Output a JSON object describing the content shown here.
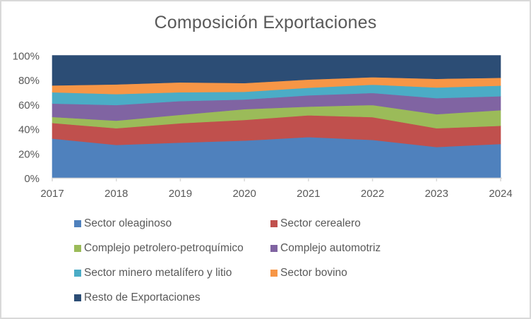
{
  "chart_data": {
    "type": "area",
    "stacked": true,
    "normalized": "100%",
    "title": "Composición Exportaciones",
    "xlabel": "",
    "ylabel": "",
    "x": [
      "2017",
      "2018",
      "2019",
      "2020",
      "2021",
      "2022",
      "2023",
      "2024"
    ],
    "ylim": [
      0,
      100
    ],
    "yticks": [
      "0%",
      "20%",
      "40%",
      "60%",
      "80%",
      "100%"
    ],
    "grid": false,
    "legend_position": "bottom",
    "series": [
      {
        "name": "Sector oleaginoso",
        "color": "#4f81bd",
        "values": [
          32.1,
          26.9,
          28.8,
          30.4,
          33.3,
          31.0,
          25.2,
          27.7
        ]
      },
      {
        "name": "Sector cerealero",
        "color": "#c0504d",
        "values": [
          12.7,
          13.6,
          15.8,
          16.9,
          17.8,
          18.6,
          15.3,
          14.8
        ]
      },
      {
        "name": "Complejo petrolero-petroquímico",
        "color": "#9bbb59",
        "values": [
          4.9,
          6.2,
          6.9,
          8.8,
          7.1,
          9.9,
          11.5,
          12.8
        ]
      },
      {
        "name": "Complejo automotriz",
        "color": "#8064a2",
        "values": [
          11.0,
          12.8,
          11.2,
          7.9,
          9.2,
          9.8,
          13.1,
          11.4
        ]
      },
      {
        "name": "Sector minero metalífero y litio",
        "color": "#4bacc6",
        "values": [
          9.2,
          8.9,
          7.2,
          6.3,
          6.2,
          6.8,
          8.7,
          8.6
        ]
      },
      {
        "name": "Sector bovino",
        "color": "#f79646",
        "values": [
          5.6,
          7.9,
          8.1,
          7.1,
          6.7,
          6.1,
          7.1,
          6.4
        ]
      },
      {
        "name": "Resto de Exportaciones",
        "color": "#2c4d75",
        "values": [
          24.5,
          23.7,
          22.0,
          22.6,
          19.7,
          17.8,
          19.1,
          18.3
        ]
      }
    ]
  }
}
